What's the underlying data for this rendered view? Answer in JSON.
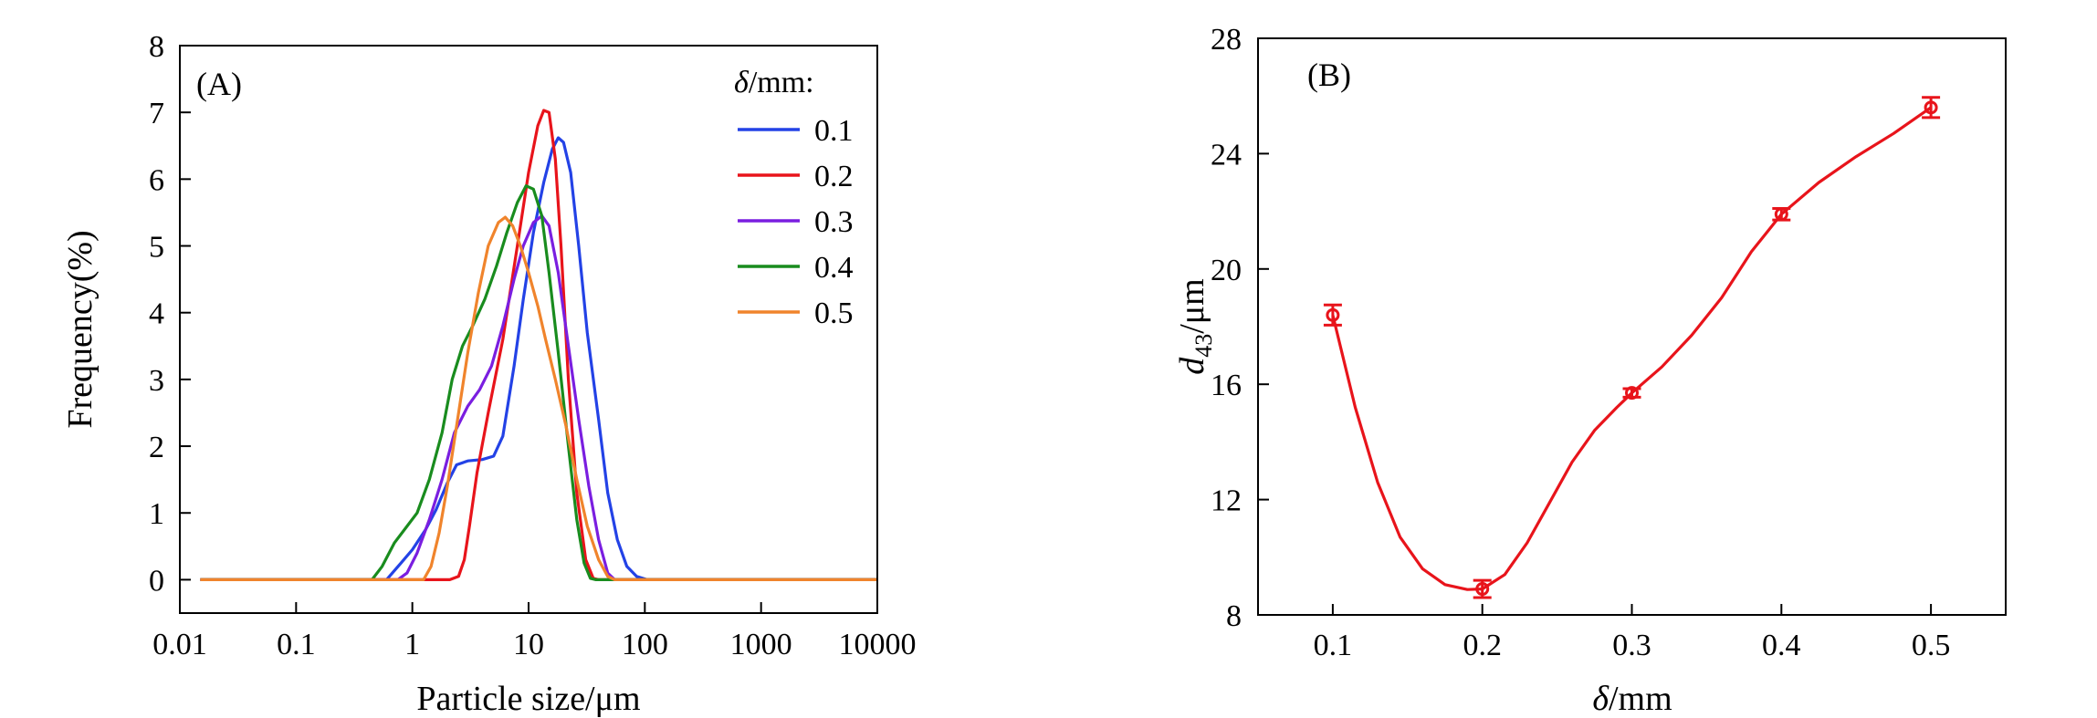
{
  "chart_data": [
    {
      "panel": "(A)",
      "type": "line",
      "xscale": "log",
      "xlabel": "Particle size/μm",
      "ylabel": "Frequency(%)",
      "xlim": [
        0.01,
        10000
      ],
      "ylim": [
        -0.5,
        8
      ],
      "xticks": [
        0.01,
        0.1,
        1,
        10,
        100,
        1000,
        10000
      ],
      "xtick_labels": [
        "0.01",
        "0.1",
        "1",
        "10",
        "100",
        "1000",
        "10000"
      ],
      "yticks": [
        0,
        1,
        2,
        3,
        4,
        5,
        6,
        7,
        8
      ],
      "ytick_labels": [
        "0",
        "1",
        "2",
        "3",
        "4",
        "5",
        "6",
        "7",
        "8"
      ],
      "legend_title": "δ/mm:",
      "legend_position": "top-right",
      "series": [
        {
          "name": "0.1",
          "color": "#2342e6",
          "points": [
            [
              0.015,
              0
            ],
            [
              0.6,
              0
            ],
            [
              0.8,
              0.25
            ],
            [
              1.0,
              0.45
            ],
            [
              1.3,
              0.75
            ],
            [
              1.6,
              1.05
            ],
            [
              2.0,
              1.45
            ],
            [
              2.4,
              1.72
            ],
            [
              3.0,
              1.78
            ],
            [
              4.0,
              1.8
            ],
            [
              5.0,
              1.85
            ],
            [
              6.0,
              2.15
            ],
            [
              7.5,
              3.2
            ],
            [
              9.0,
              4.2
            ],
            [
              11,
              5.2
            ],
            [
              13.5,
              5.95
            ],
            [
              16,
              6.45
            ],
            [
              18,
              6.62
            ],
            [
              20,
              6.55
            ],
            [
              23,
              6.1
            ],
            [
              27,
              5.0
            ],
            [
              32,
              3.7
            ],
            [
              40,
              2.4
            ],
            [
              48,
              1.3
            ],
            [
              58,
              0.6
            ],
            [
              70,
              0.2
            ],
            [
              85,
              0.05
            ],
            [
              105,
              0
            ],
            [
              10000,
              0
            ]
          ]
        },
        {
          "name": "0.2",
          "color": "#e8141b",
          "points": [
            [
              0.015,
              0
            ],
            [
              2.1,
              0
            ],
            [
              2.5,
              0.05
            ],
            [
              2.8,
              0.3
            ],
            [
              3.1,
              0.8
            ],
            [
              3.6,
              1.6
            ],
            [
              4.5,
              2.5
            ],
            [
              6,
              3.6
            ],
            [
              8,
              5.0
            ],
            [
              10,
              6.1
            ],
            [
              12,
              6.8
            ],
            [
              13.5,
              7.03
            ],
            [
              15,
              7.0
            ],
            [
              17,
              6.3
            ],
            [
              19,
              5.0
            ],
            [
              22,
              3.0
            ],
            [
              26,
              1.3
            ],
            [
              31,
              0.3
            ],
            [
              36,
              0.02
            ],
            [
              40,
              0
            ],
            [
              10000,
              0
            ]
          ]
        },
        {
          "name": "0.3",
          "color": "#7a1ee0",
          "points": [
            [
              0.015,
              0
            ],
            [
              0.75,
              0
            ],
            [
              0.9,
              0.1
            ],
            [
              1.1,
              0.4
            ],
            [
              1.4,
              0.9
            ],
            [
              1.8,
              1.5
            ],
            [
              2.3,
              2.2
            ],
            [
              3.0,
              2.6
            ],
            [
              3.8,
              2.85
            ],
            [
              4.8,
              3.2
            ],
            [
              6,
              3.8
            ],
            [
              7.5,
              4.5
            ],
            [
              9,
              5.0
            ],
            [
              11,
              5.35
            ],
            [
              13,
              5.45
            ],
            [
              15,
              5.3
            ],
            [
              18,
              4.6
            ],
            [
              22,
              3.5
            ],
            [
              27,
              2.4
            ],
            [
              33,
              1.4
            ],
            [
              40,
              0.6
            ],
            [
              48,
              0.1
            ],
            [
              55,
              0
            ],
            [
              10000,
              0
            ]
          ]
        },
        {
          "name": "0.4",
          "color": "#198c1e",
          "points": [
            [
              0.015,
              0
            ],
            [
              0.45,
              0
            ],
            [
              0.55,
              0.2
            ],
            [
              0.7,
              0.55
            ],
            [
              0.9,
              0.8
            ],
            [
              1.1,
              1.0
            ],
            [
              1.4,
              1.5
            ],
            [
              1.8,
              2.2
            ],
            [
              2.2,
              3.0
            ],
            [
              2.7,
              3.5
            ],
            [
              3.3,
              3.8
            ],
            [
              4.2,
              4.2
            ],
            [
              5.3,
              4.7
            ],
            [
              6.5,
              5.2
            ],
            [
              8,
              5.65
            ],
            [
              9.5,
              5.9
            ],
            [
              11,
              5.85
            ],
            [
              13,
              5.45
            ],
            [
              15,
              4.6
            ],
            [
              18,
              3.4
            ],
            [
              22,
              2.0
            ],
            [
              26,
              0.9
            ],
            [
              30,
              0.25
            ],
            [
              34,
              0.02
            ],
            [
              38,
              0
            ],
            [
              10000,
              0
            ]
          ]
        },
        {
          "name": "0.5",
          "color": "#f0842c",
          "points": [
            [
              0.015,
              0
            ],
            [
              1.25,
              0
            ],
            [
              1.45,
              0.2
            ],
            [
              1.7,
              0.7
            ],
            [
              2.0,
              1.4
            ],
            [
              2.4,
              2.3
            ],
            [
              3.0,
              3.4
            ],
            [
              3.7,
              4.3
            ],
            [
              4.5,
              5.0
            ],
            [
              5.5,
              5.35
            ],
            [
              6.3,
              5.43
            ],
            [
              7.3,
              5.3
            ],
            [
              8.5,
              5.0
            ],
            [
              10,
              4.6
            ],
            [
              12,
              4.1
            ],
            [
              14,
              3.6
            ],
            [
              17,
              3.0
            ],
            [
              21,
              2.3
            ],
            [
              26,
              1.5
            ],
            [
              32,
              0.8
            ],
            [
              40,
              0.3
            ],
            [
              48,
              0.05
            ],
            [
              55,
              0
            ],
            [
              10000,
              0
            ]
          ]
        }
      ]
    },
    {
      "panel": "(B)",
      "type": "line",
      "xlabel_var": "δ",
      "xlabel_unit": "/mm",
      "ylabel_var": "d",
      "ylabel_sub": "43",
      "ylabel_unit": "/μm",
      "xlim": [
        0.05,
        0.55
      ],
      "ylim": [
        8,
        28
      ],
      "xticks": [
        0.1,
        0.2,
        0.3,
        0.4,
        0.5
      ],
      "xtick_labels": [
        "0.1",
        "0.2",
        "0.3",
        "0.4",
        "0.5"
      ],
      "yticks": [
        8,
        12,
        16,
        20,
        24,
        28
      ],
      "ytick_labels": [
        "8",
        "12",
        "16",
        "20",
        "24",
        "28"
      ],
      "color": "#e8141b",
      "x": [
        0.1,
        0.2,
        0.3,
        0.4,
        0.5
      ],
      "y": [
        18.4,
        8.9,
        15.7,
        21.9,
        25.6
      ],
      "yerr": [
        0.35,
        0.3,
        0.15,
        0.2,
        0.35
      ],
      "curve": [
        [
          0.1,
          18.4
        ],
        [
          0.115,
          15.2
        ],
        [
          0.13,
          12.6
        ],
        [
          0.145,
          10.7
        ],
        [
          0.16,
          9.6
        ],
        [
          0.175,
          9.05
        ],
        [
          0.19,
          8.88
        ],
        [
          0.2,
          8.9
        ],
        [
          0.215,
          9.4
        ],
        [
          0.23,
          10.5
        ],
        [
          0.245,
          11.9
        ],
        [
          0.26,
          13.3
        ],
        [
          0.275,
          14.4
        ],
        [
          0.29,
          15.2
        ],
        [
          0.3,
          15.7
        ],
        [
          0.32,
          16.6
        ],
        [
          0.34,
          17.7
        ],
        [
          0.36,
          19.0
        ],
        [
          0.38,
          20.6
        ],
        [
          0.4,
          21.9
        ],
        [
          0.425,
          23.0
        ],
        [
          0.45,
          23.9
        ],
        [
          0.475,
          24.7
        ],
        [
          0.5,
          25.6
        ]
      ]
    }
  ]
}
